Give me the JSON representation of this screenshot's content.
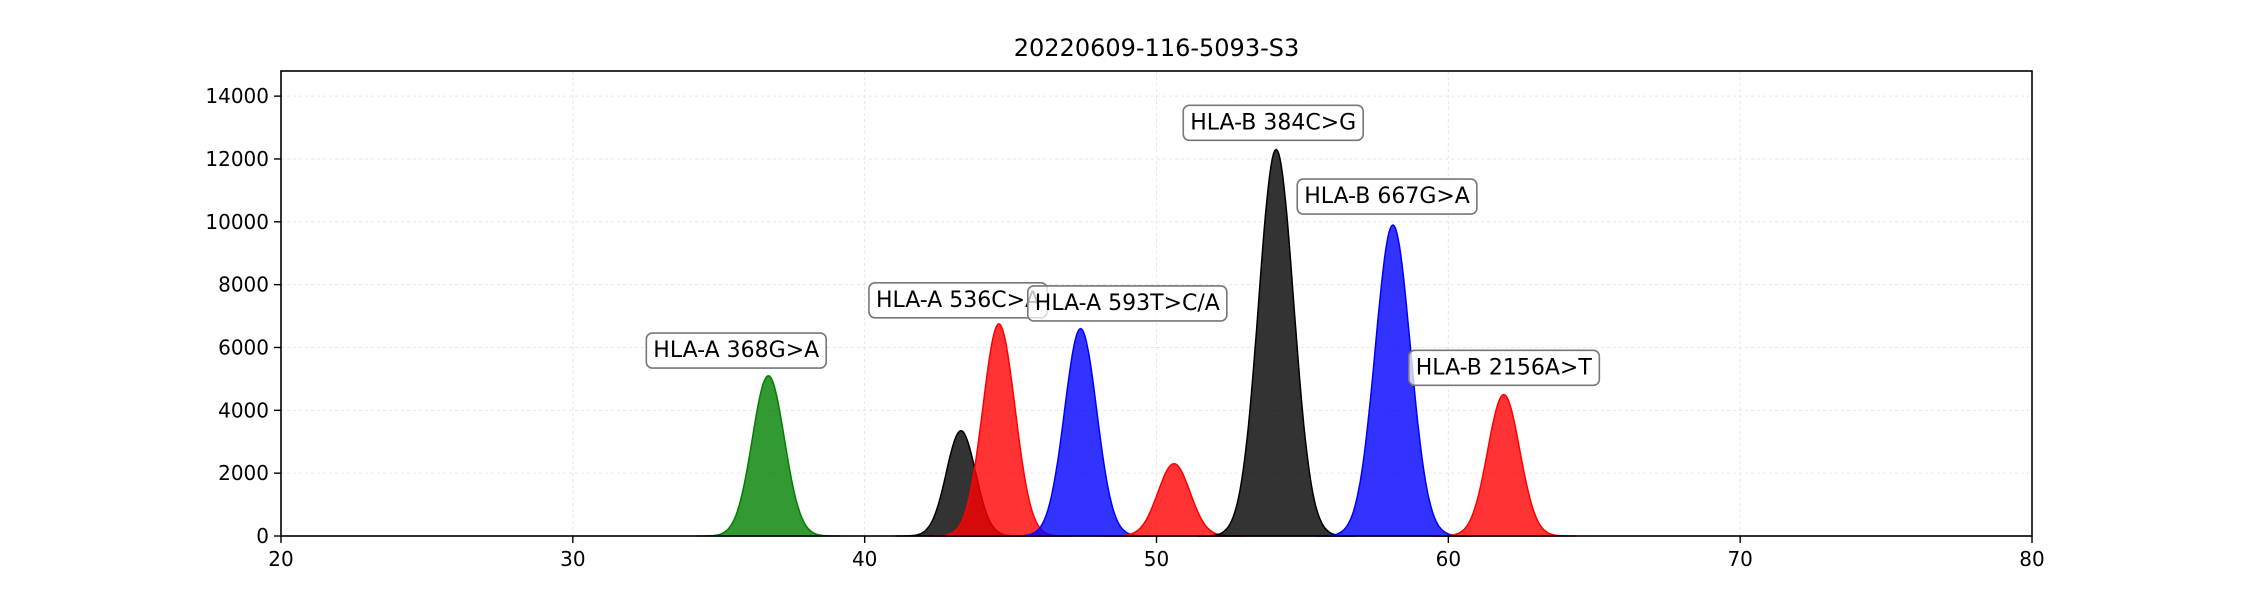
{
  "chart_data": {
    "type": "area",
    "title": "20220609-116-5093-S3",
    "xlabel": "",
    "ylabel": "",
    "xlim": [
      20,
      80
    ],
    "ylim": [
      0,
      14800
    ],
    "xticks": [
      20,
      30,
      40,
      50,
      60,
      70,
      80
    ],
    "yticks": [
      0,
      2000,
      4000,
      6000,
      8000,
      10000,
      12000,
      14000
    ],
    "grid": true,
    "colors": {
      "green": "#008000",
      "black": "#000000",
      "red": "#ff0000",
      "blue": "#0000ff"
    },
    "peaks": [
      {
        "color": "green",
        "center": 36.7,
        "height": 5100,
        "sigma": 0.55
      },
      {
        "color": "black",
        "center": 43.3,
        "height": 3350,
        "sigma": 0.5
      },
      {
        "color": "red",
        "center": 44.6,
        "height": 6750,
        "sigma": 0.55
      },
      {
        "color": "blue",
        "center": 47.4,
        "height": 6600,
        "sigma": 0.55
      },
      {
        "color": "red",
        "center": 50.6,
        "height": 2300,
        "sigma": 0.55
      },
      {
        "color": "black",
        "center": 54.1,
        "height": 12300,
        "sigma": 0.6
      },
      {
        "color": "blue",
        "center": 58.1,
        "height": 9900,
        "sigma": 0.6
      },
      {
        "color": "red",
        "center": 61.9,
        "height": 4500,
        "sigma": 0.55
      }
    ],
    "annotations": [
      {
        "text": "HLA-A 368G>A",
        "x": 35.6,
        "y": 5950
      },
      {
        "text": "HLA-A 536C>A",
        "x": 43.2,
        "y": 7550
      },
      {
        "text": "HLA-A 593T>C/A",
        "x": 49.0,
        "y": 7450
      },
      {
        "text": "HLA-B 384C>G",
        "x": 54.0,
        "y": 13200
      },
      {
        "text": "HLA-B 667G>A",
        "x": 57.9,
        "y": 10850
      },
      {
        "text": "HLA-B 2156A>T",
        "x": 61.9,
        "y": 5400
      }
    ]
  }
}
